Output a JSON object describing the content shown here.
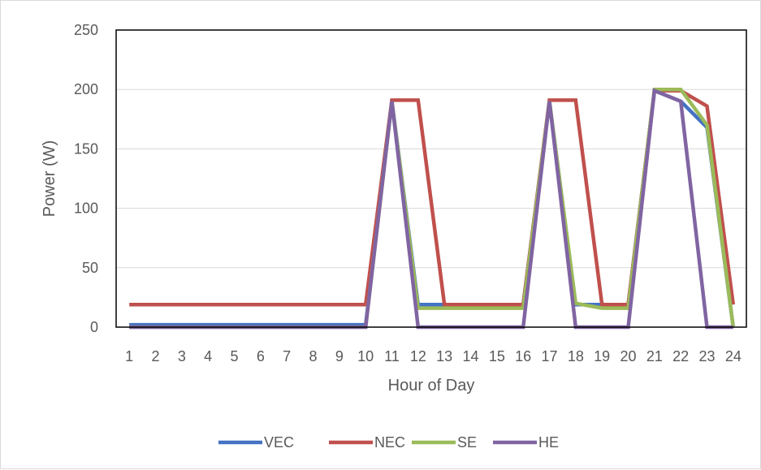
{
  "chart_data": {
    "type": "line",
    "title": "",
    "xlabel": "Hour of Day",
    "ylabel": "Power (W)",
    "ylim": [
      0,
      250
    ],
    "yticks": [
      0,
      50,
      100,
      150,
      200,
      250
    ],
    "grid": true,
    "legend_position": "bottom",
    "categories": [
      "1",
      "2",
      "3",
      "4",
      "5",
      "6",
      "7",
      "8",
      "9",
      "10",
      "11",
      "12",
      "13",
      "14",
      "15",
      "16",
      "17",
      "18",
      "19",
      "20",
      "21",
      "22",
      "23",
      "24"
    ],
    "series": [
      {
        "name": "VEC",
        "color": "#4472c4",
        "values": [
          2,
          2,
          2,
          2,
          2,
          2,
          2,
          2,
          2,
          2,
          190,
          19,
          19,
          19,
          19,
          19,
          190,
          19,
          19,
          19,
          199,
          190,
          168,
          0
        ]
      },
      {
        "name": "NEC",
        "color": "#c0504d",
        "values": [
          19,
          19,
          19,
          19,
          19,
          19,
          19,
          19,
          19,
          19,
          191,
          191,
          19,
          19,
          19,
          19,
          191,
          191,
          19,
          19,
          199,
          199,
          186,
          19
        ]
      },
      {
        "name": "SE",
        "color": "#9bbb59",
        "values": [
          0,
          0,
          0,
          0,
          0,
          0,
          0,
          0,
          0,
          0,
          190,
          16,
          16,
          16,
          16,
          16,
          190,
          20,
          16,
          16,
          200,
          200,
          170,
          0
        ]
      },
      {
        "name": "HE",
        "color": "#8064a2",
        "values": [
          0,
          0,
          0,
          0,
          0,
          0,
          0,
          0,
          0,
          0,
          190,
          0,
          0,
          0,
          0,
          0,
          190,
          0,
          0,
          0,
          199,
          190,
          0,
          0
        ]
      }
    ]
  }
}
